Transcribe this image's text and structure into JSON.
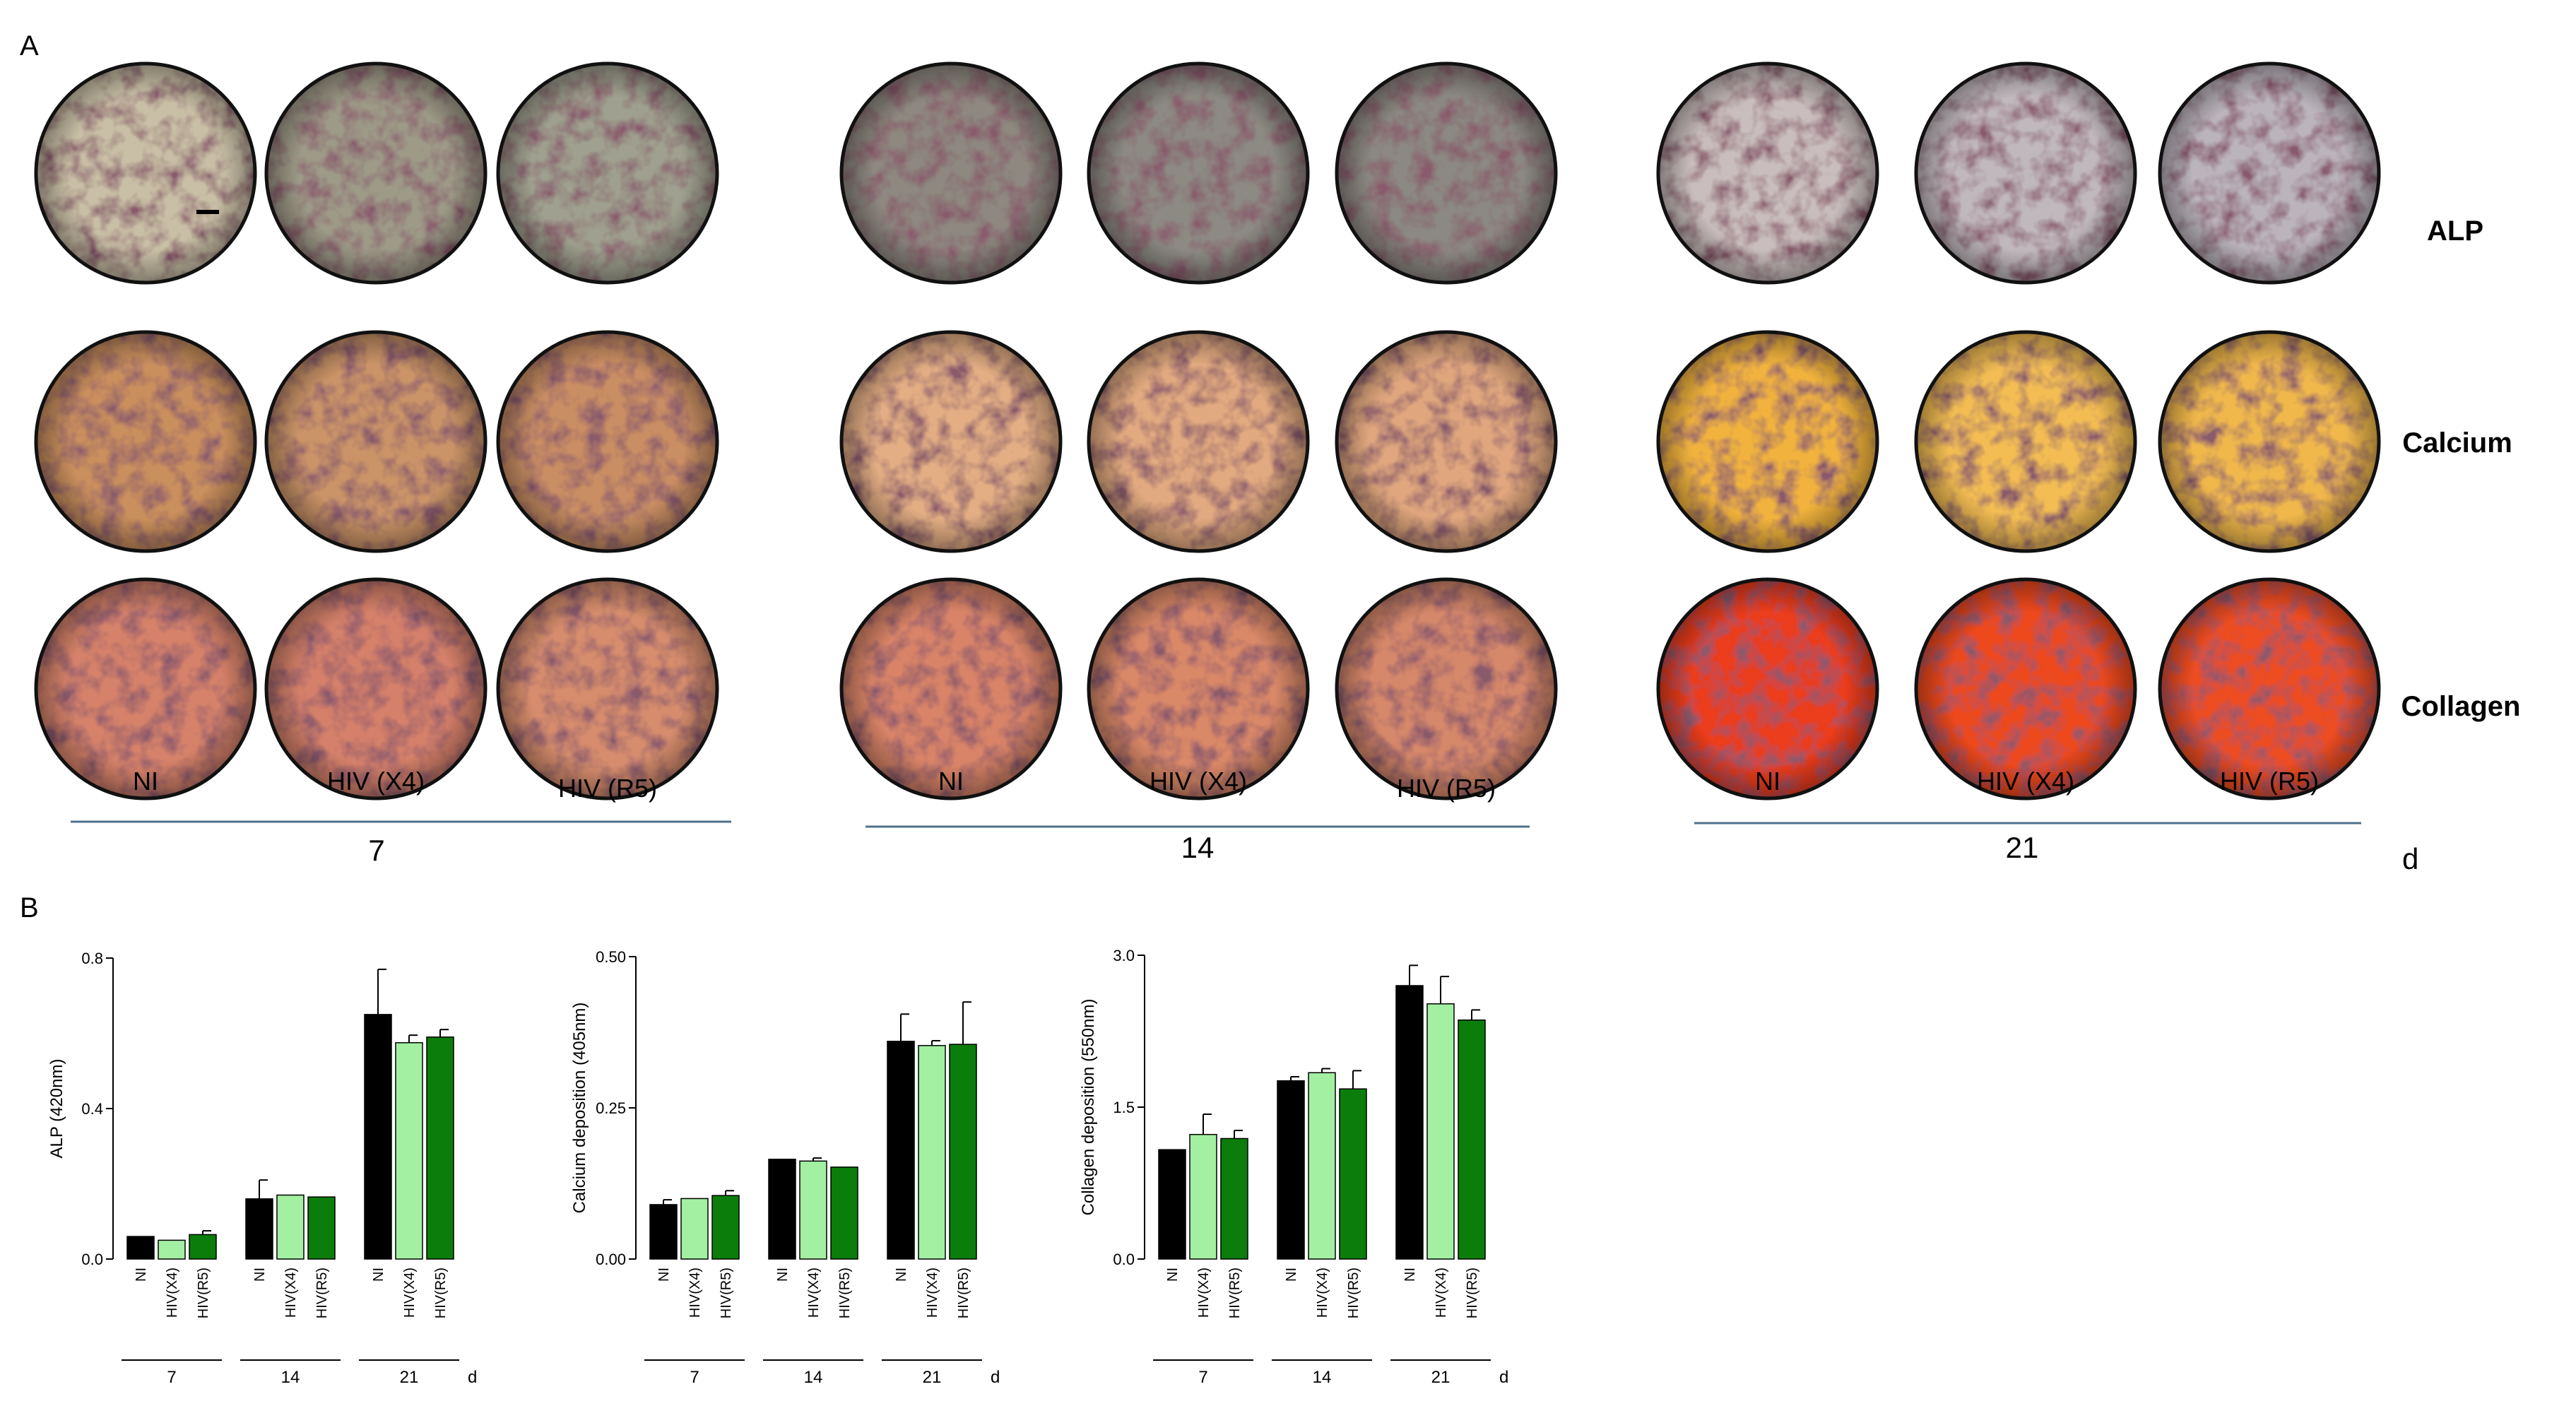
{
  "panels": {
    "a": "A",
    "b": "B"
  },
  "micrographs": {
    "rows": [
      {
        "name": "ALP",
        "label": "ALP"
      },
      {
        "name": "Calcium",
        "label": "Calcium"
      },
      {
        "name": "Collagen",
        "label": "Collagen"
      }
    ],
    "conditions": [
      "NI",
      "HIV (X4)",
      "HIV (R5)"
    ],
    "days": [
      "7",
      "14",
      "21"
    ],
    "unit": "d",
    "colors": {
      "ALP": [
        "#c9bfa6",
        "#9e9a88",
        "#9fa08f",
        "#8e8880",
        "#8d8a84",
        "#8c8883",
        "#c9bdbd",
        "#c1b8bd",
        "#bbb4bc"
      ],
      "Calcium": [
        "#c98f5d",
        "#cb9468",
        "#c98e64",
        "#e3ae84",
        "#e2aa80",
        "#e0a77e",
        "#f1b33c",
        "#f3bd52",
        "#f0b84c"
      ],
      "Collagen": [
        "#d6826a",
        "#d4806b",
        "#d68d6d",
        "#d98468",
        "#d98868",
        "#d6886b",
        "#ec3c1c",
        "#ed4a1f",
        "#ee4d22"
      ]
    }
  },
  "chart_data": [
    {
      "type": "bar",
      "title": "",
      "ylabel": "ALP (420nm)",
      "xlabel": "",
      "ylim": [
        0,
        0.8
      ],
      "yticks": [
        "0.0",
        "0.4",
        "0.8"
      ],
      "groups": [
        "7",
        "14",
        "21"
      ],
      "group_unit": "d",
      "categories": [
        "NI",
        "HIV(X4)",
        "HIV(R5)"
      ],
      "series_colors": [
        "#000000",
        "#a3f0a3",
        "#0b7d0b"
      ],
      "values": [
        [
          0.06,
          0.05,
          0.065
        ],
        [
          0.16,
          0.17,
          0.165
        ],
        [
          0.65,
          0.575,
          0.59
        ]
      ],
      "errors": [
        [
          0.0,
          0.0,
          0.01
        ],
        [
          0.05,
          0.0,
          0.0
        ],
        [
          0.12,
          0.02,
          0.02
        ]
      ]
    },
    {
      "type": "bar",
      "title": "",
      "ylabel": "Calcium deposition (405nm)",
      "xlabel": "",
      "ylim": [
        0,
        0.5
      ],
      "yticks": [
        "0.00",
        "0.25",
        "0.50"
      ],
      "groups": [
        "7",
        "14",
        "21"
      ],
      "group_unit": "d",
      "categories": [
        "NI",
        "HIV(X4)",
        "HIV(R5)"
      ],
      "series_colors": [
        "#000000",
        "#a3f0a3",
        "#0b7d0b"
      ],
      "values": [
        [
          0.09,
          0.1,
          0.105
        ],
        [
          0.165,
          0.162,
          0.152
        ],
        [
          0.36,
          0.353,
          0.355
        ]
      ],
      "errors": [
        [
          0.008,
          0.0,
          0.008
        ],
        [
          0.0,
          0.005,
          0.0
        ],
        [
          0.045,
          0.008,
          0.07
        ]
      ]
    },
    {
      "type": "bar",
      "title": "",
      "ylabel": "Collagen deposition (550nm)",
      "xlabel": "",
      "ylim": [
        0,
        3.0
      ],
      "yticks": [
        "0.0",
        "1.5",
        "3.0"
      ],
      "groups": [
        "7",
        "14",
        "21"
      ],
      "group_unit": "d",
      "categories": [
        "NI",
        "HIV(X4)",
        "HIV(R5)"
      ],
      "series_colors": [
        "#000000",
        "#a3f0a3",
        "#0b7d0b"
      ],
      "values": [
        [
          1.08,
          1.23,
          1.19
        ],
        [
          1.76,
          1.84,
          1.68
        ],
        [
          2.7,
          2.52,
          2.36
        ]
      ],
      "errors": [
        [
          0.0,
          0.2,
          0.08
        ],
        [
          0.04,
          0.04,
          0.18
        ],
        [
          0.2,
          0.27,
          0.1
        ]
      ]
    }
  ]
}
